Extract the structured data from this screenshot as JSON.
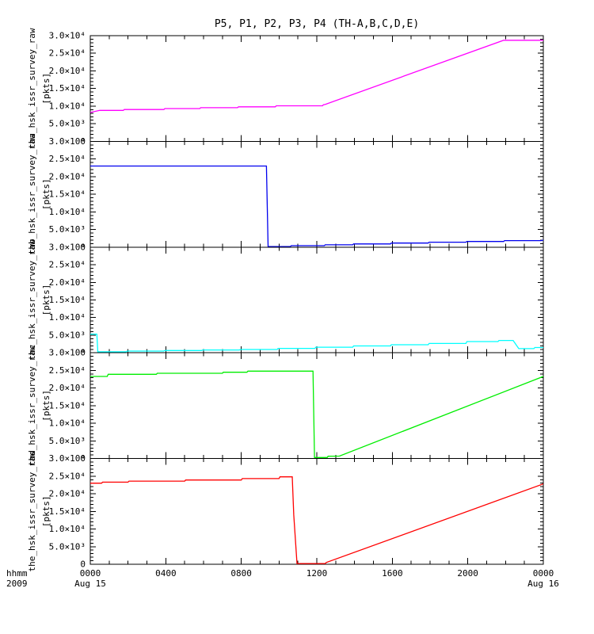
{
  "footer": {
    "time_label": "hhmm",
    "year": "2009"
  },
  "chart_data": {
    "type": "line",
    "title": "P5, P1, P2, P3, P4 (TH-A,B,C,D,E)",
    "background_color": "#ffffff",
    "axis_color": "#000000",
    "grid": "off",
    "legend": "none",
    "x": {
      "label_format": "hhmm",
      "year": "2009",
      "range_hours": [
        0,
        24
      ],
      "minor_tick_hours": 1,
      "ticks": [
        {
          "hour": 0,
          "label": "0000",
          "date": "Aug 15"
        },
        {
          "hour": 4,
          "label": "0400"
        },
        {
          "hour": 8,
          "label": "0800"
        },
        {
          "hour": 12,
          "label": "1200"
        },
        {
          "hour": 16,
          "label": "1600"
        },
        {
          "hour": 20,
          "label": "2000"
        },
        {
          "hour": 24,
          "label": "0000",
          "date": "Aug 16"
        }
      ]
    },
    "y": {
      "units": "[pkts]",
      "range": [
        0,
        30000
      ],
      "minor_step": 1000,
      "ticks": [
        {
          "value": 30000,
          "label": "3.0×10⁴"
        },
        {
          "value": 25000,
          "label": "2.5×10⁴"
        },
        {
          "value": 20000,
          "label": "2.0×10⁴"
        },
        {
          "value": 15000,
          "label": "1.5×10⁴"
        },
        {
          "value": 10000,
          "label": "1.0×10⁴"
        },
        {
          "value": 5000,
          "label": "5.0×10³"
        },
        {
          "value": 0,
          "label": "0"
        }
      ]
    },
    "panels": [
      {
        "name": "tha_hsk_issr_survey_raw",
        "units": "[pkts]",
        "color": "#ff00ff",
        "points": [
          [
            0,
            8200
          ],
          [
            0.5,
            8800
          ],
          [
            1.75,
            8800
          ],
          [
            1.8,
            9050
          ],
          [
            3.9,
            9050
          ],
          [
            3.95,
            9300
          ],
          [
            5.8,
            9300
          ],
          [
            5.85,
            9550
          ],
          [
            7.8,
            9550
          ],
          [
            7.85,
            9800
          ],
          [
            9.8,
            9800
          ],
          [
            9.85,
            10100
          ],
          [
            12.3,
            10100
          ],
          [
            12.35,
            10400
          ],
          [
            12.45,
            10500
          ],
          [
            21.9,
            28700
          ],
          [
            24,
            28700
          ]
        ]
      },
      {
        "name": "thb_hsk_issr_survey_raw",
        "units": "[pkts]",
        "color": "#0000ee",
        "points": [
          [
            0,
            23000
          ],
          [
            9.33,
            23000
          ],
          [
            9.42,
            150
          ],
          [
            10.6,
            150
          ],
          [
            10.65,
            400
          ],
          [
            12.4,
            400
          ],
          [
            12.45,
            650
          ],
          [
            13.9,
            650
          ],
          [
            13.95,
            900
          ],
          [
            15.9,
            900
          ],
          [
            15.95,
            1150
          ],
          [
            17.9,
            1150
          ],
          [
            17.95,
            1400
          ],
          [
            19.9,
            1400
          ],
          [
            19.95,
            1600
          ],
          [
            21.9,
            1600
          ],
          [
            21.95,
            1850
          ],
          [
            23.9,
            1850
          ],
          [
            24,
            2000
          ]
        ]
      },
      {
        "name": "thc_hsk_issr_survey_raw",
        "units": "[pkts]",
        "color": "#00ffff",
        "points": [
          [
            0,
            5300
          ],
          [
            0.35,
            5300
          ],
          [
            0.4,
            300
          ],
          [
            1.9,
            300
          ],
          [
            1.95,
            500
          ],
          [
            3.9,
            500
          ],
          [
            3.95,
            650
          ],
          [
            5.9,
            650
          ],
          [
            5.95,
            800
          ],
          [
            7.9,
            800
          ],
          [
            7.95,
            950
          ],
          [
            9.9,
            950
          ],
          [
            9.95,
            1250
          ],
          [
            11.9,
            1250
          ],
          [
            11.95,
            1600
          ],
          [
            13.9,
            1600
          ],
          [
            13.95,
            1950
          ],
          [
            15.9,
            1950
          ],
          [
            15.95,
            2300
          ],
          [
            17.9,
            2300
          ],
          [
            17.95,
            2650
          ],
          [
            19.9,
            2650
          ],
          [
            19.95,
            3200
          ],
          [
            21.6,
            3200
          ],
          [
            21.65,
            3500
          ],
          [
            22.4,
            3500
          ],
          [
            22.7,
            1200
          ],
          [
            23.5,
            1200
          ],
          [
            23.55,
            1500
          ],
          [
            24,
            1500
          ]
        ]
      },
      {
        "name": "thd_hsk_issr_survey_raw",
        "units": "[pkts]",
        "color": "#00ee00",
        "points": [
          [
            0,
            23300
          ],
          [
            0.9,
            23300
          ],
          [
            0.95,
            23900
          ],
          [
            3.5,
            23900
          ],
          [
            3.55,
            24200
          ],
          [
            7,
            24200
          ],
          [
            7.05,
            24500
          ],
          [
            8.3,
            24500
          ],
          [
            8.35,
            24800
          ],
          [
            11.8,
            24800
          ],
          [
            11.88,
            300
          ],
          [
            12.55,
            300
          ],
          [
            12.6,
            650
          ],
          [
            13.2,
            700
          ],
          [
            24,
            23300
          ]
        ]
      },
      {
        "name": "the_hsk_issr_survey_raw",
        "units": "[pkts]",
        "color": "#ff0000",
        "points": [
          [
            0,
            23000
          ],
          [
            0.6,
            23000
          ],
          [
            0.65,
            23300
          ],
          [
            2,
            23300
          ],
          [
            2.05,
            23600
          ],
          [
            5,
            23600
          ],
          [
            5.05,
            23900
          ],
          [
            8,
            23900
          ],
          [
            8.05,
            24300
          ],
          [
            10,
            24300
          ],
          [
            10.05,
            24800
          ],
          [
            10.7,
            24800
          ],
          [
            10.78,
            14000
          ],
          [
            10.95,
            200
          ],
          [
            12.45,
            200
          ],
          [
            12.5,
            500
          ],
          [
            24,
            22800
          ]
        ]
      }
    ]
  }
}
